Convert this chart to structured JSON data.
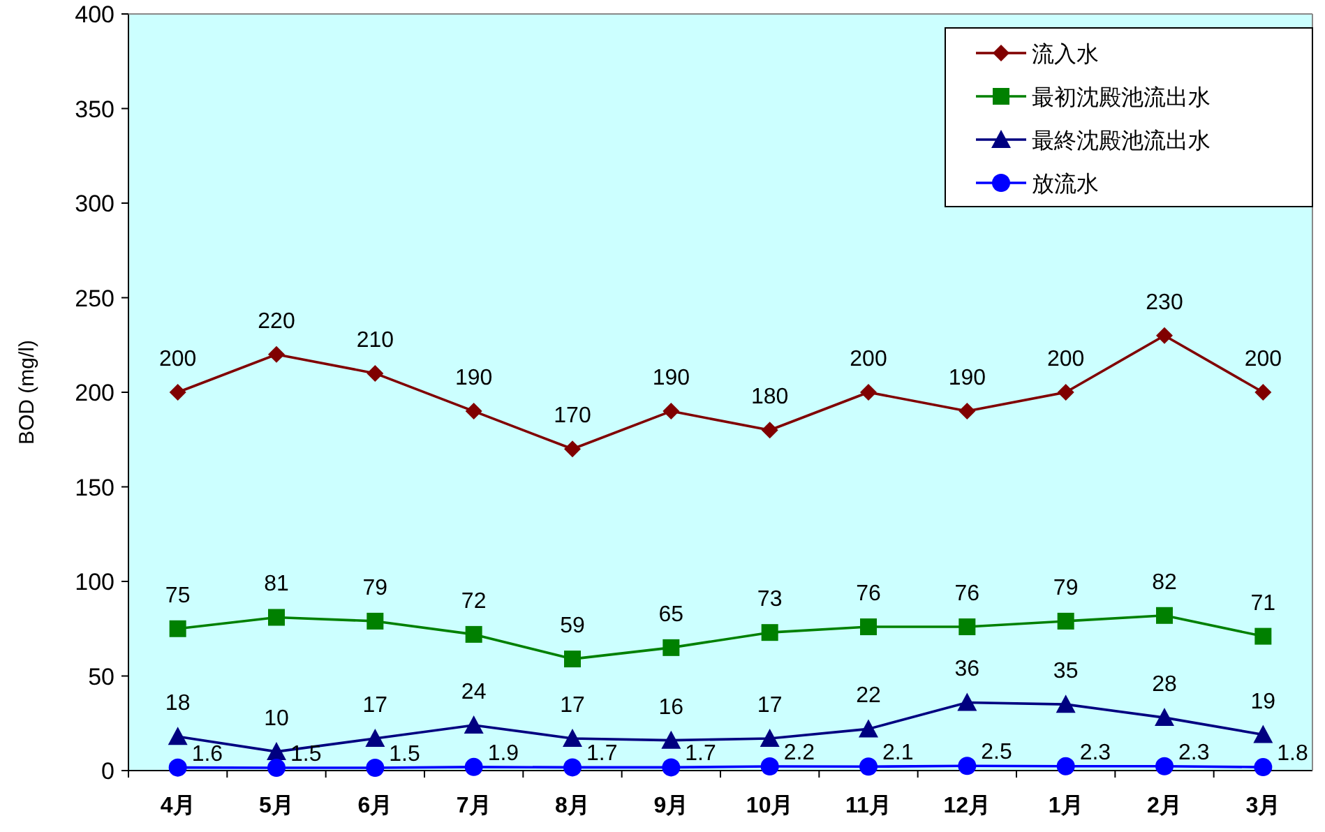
{
  "chart_data": {
    "type": "line",
    "ylabel": "BOD (mg/l)",
    "categories": [
      "4月",
      "5月",
      "6月",
      "7月",
      "8月",
      "9月",
      "10月",
      "11月",
      "12月",
      "1月",
      "2月",
      "3月"
    ],
    "series": [
      {
        "name": "流入水",
        "color": "#800000",
        "marker": "diamond",
        "values": [
          200,
          220,
          210,
          190,
          170,
          190,
          180,
          200,
          190,
          200,
          230,
          200
        ]
      },
      {
        "name": "最初沈殿池流出水",
        "color": "#008000",
        "marker": "square",
        "values": [
          75,
          81,
          79,
          72,
          59,
          65,
          73,
          76,
          76,
          79,
          82,
          71
        ]
      },
      {
        "name": "最終沈殿池流出水",
        "color": "#000080",
        "marker": "triangle",
        "values": [
          18,
          10,
          17,
          24,
          17,
          16,
          17,
          22,
          36,
          35,
          28,
          19
        ]
      },
      {
        "name": "放流水",
        "color": "#0000ff",
        "marker": "circle",
        "values": [
          1.6,
          1.5,
          1.5,
          1.9,
          1.7,
          1.7,
          2.2,
          2.1,
          2.5,
          2.3,
          2.3,
          1.8
        ]
      }
    ],
    "ylim": [
      0,
      400
    ],
    "yticks": [
      0,
      50,
      100,
      150,
      200,
      250,
      300,
      350,
      400
    ],
    "grid": false,
    "legend": "top right",
    "data_labels": true
  }
}
